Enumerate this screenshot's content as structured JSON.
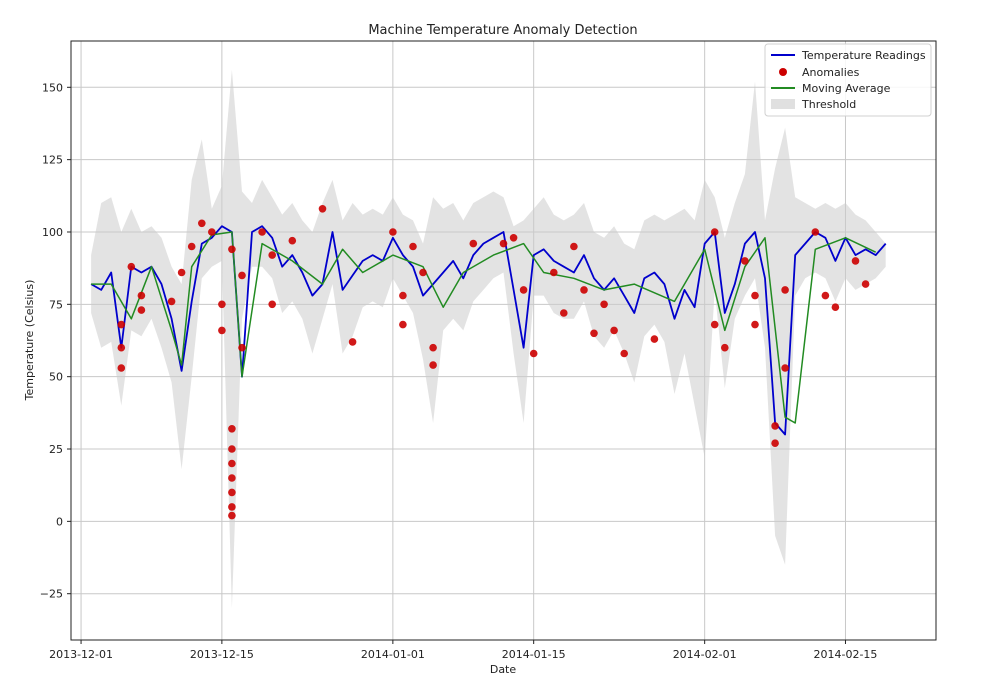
{
  "chart_data": {
    "type": "line",
    "title": "Machine Temperature Anomaly Detection",
    "xlabel": "Date",
    "ylabel": "Temperature (Celsius)",
    "x_range": [
      "2013-11-30",
      "2014-02-24"
    ],
    "ylim": [
      -41,
      166
    ],
    "x_ticks": [
      "2013-12-01",
      "2013-12-15",
      "2014-01-01",
      "2014-01-15",
      "2014-02-01",
      "2014-02-15"
    ],
    "y_ticks": [
      -25,
      0,
      25,
      50,
      75,
      100,
      125,
      150
    ],
    "grid": true,
    "legend_position": "top-right",
    "legend": [
      "Temperature Readings",
      "Anomalies",
      "Moving Average",
      "Threshold"
    ],
    "colors": {
      "temperature": "#0000cc",
      "anomalies": "#cc0000",
      "moving_average": "#228b22",
      "threshold": "#cccccc"
    },
    "series": [
      {
        "name": "Temperature Readings",
        "x": [
          "2013-12-02",
          "2013-12-03",
          "2013-12-04",
          "2013-12-05",
          "2013-12-06",
          "2013-12-07",
          "2013-12-08",
          "2013-12-09",
          "2013-12-10",
          "2013-12-11",
          "2013-12-12",
          "2013-12-13",
          "2013-12-14",
          "2013-12-15",
          "2013-12-16",
          "2013-12-17",
          "2013-12-18",
          "2013-12-19",
          "2013-12-20",
          "2013-12-21",
          "2013-12-22",
          "2013-12-23",
          "2013-12-24",
          "2013-12-25",
          "2013-12-26",
          "2013-12-27",
          "2013-12-28",
          "2013-12-29",
          "2013-12-30",
          "2013-12-31",
          "2014-01-01",
          "2014-01-02",
          "2014-01-03",
          "2014-01-04",
          "2014-01-05",
          "2014-01-06",
          "2014-01-07",
          "2014-01-08",
          "2014-01-09",
          "2014-01-10",
          "2014-01-11",
          "2014-01-12",
          "2014-01-13",
          "2014-01-14",
          "2014-01-15",
          "2014-01-16",
          "2014-01-17",
          "2014-01-18",
          "2014-01-19",
          "2014-01-20",
          "2014-01-21",
          "2014-01-22",
          "2014-01-23",
          "2014-01-24",
          "2014-01-25",
          "2014-01-26",
          "2014-01-27",
          "2014-01-28",
          "2014-01-29",
          "2014-01-30",
          "2014-01-31",
          "2014-02-01",
          "2014-02-02",
          "2014-02-03",
          "2014-02-04",
          "2014-02-05",
          "2014-02-06",
          "2014-02-07",
          "2014-02-08",
          "2014-02-09",
          "2014-02-10",
          "2014-02-11",
          "2014-02-12",
          "2014-02-13",
          "2014-02-14",
          "2014-02-15",
          "2014-02-16",
          "2014-02-17",
          "2014-02-18",
          "2014-02-19"
        ],
        "values": [
          82,
          80,
          86,
          60,
          88,
          86,
          88,
          82,
          70,
          52,
          76,
          96,
          98,
          102,
          100,
          50,
          100,
          102,
          98,
          88,
          92,
          86,
          78,
          82,
          100,
          80,
          85,
          90,
          92,
          90,
          98,
          92,
          88,
          78,
          82,
          86,
          90,
          84,
          92,
          96,
          98,
          100,
          80,
          60,
          92,
          94,
          90,
          88,
          86,
          92,
          84,
          80,
          84,
          78,
          72,
          84,
          86,
          82,
          70,
          80,
          74,
          96,
          100,
          72,
          82,
          96,
          100,
          84,
          34,
          30,
          92,
          96,
          100,
          98,
          90,
          98,
          92,
          94,
          92,
          96
        ]
      },
      {
        "name": "Moving Average",
        "x": [
          "2013-12-02",
          "2013-12-04",
          "2013-12-06",
          "2013-12-08",
          "2013-12-10",
          "2013-12-11",
          "2013-12-12",
          "2013-12-14",
          "2013-12-16",
          "2013-12-17",
          "2013-12-19",
          "2013-12-22",
          "2013-12-25",
          "2013-12-27",
          "2013-12-29",
          "2014-01-01",
          "2014-01-04",
          "2014-01-06",
          "2014-01-08",
          "2014-01-11",
          "2014-01-14",
          "2014-01-16",
          "2014-01-19",
          "2014-01-22",
          "2014-01-25",
          "2014-01-29",
          "2014-02-01",
          "2014-02-03",
          "2014-02-05",
          "2014-02-07",
          "2014-02-09",
          "2014-02-10",
          "2014-02-12",
          "2014-02-15",
          "2014-02-18"
        ],
        "values": [
          82,
          82,
          70,
          88,
          66,
          54,
          88,
          99,
          100,
          50,
          96,
          90,
          82,
          94,
          86,
          92,
          88,
          74,
          86,
          92,
          96,
          86,
          84,
          80,
          82,
          76,
          94,
          66,
          88,
          98,
          36,
          34,
          94,
          98,
          93
        ]
      },
      {
        "name": "Anomalies",
        "type": "scatter",
        "x": [
          "2013-12-05",
          "2013-12-05",
          "2013-12-05",
          "2013-12-06",
          "2013-12-07",
          "2013-12-07",
          "2013-12-10",
          "2013-12-11",
          "2013-12-12",
          "2013-12-13",
          "2013-12-14",
          "2013-12-15",
          "2013-12-15",
          "2013-12-16",
          "2013-12-16",
          "2013-12-16",
          "2013-12-16",
          "2013-12-16",
          "2013-12-16",
          "2013-12-16",
          "2013-12-16",
          "2013-12-17",
          "2013-12-17",
          "2013-12-19",
          "2013-12-20",
          "2013-12-20",
          "2013-12-22",
          "2013-12-25",
          "2013-12-28",
          "2014-01-01",
          "2014-01-02",
          "2014-01-02",
          "2014-01-03",
          "2014-01-04",
          "2014-01-05",
          "2014-01-05",
          "2014-01-09",
          "2014-01-12",
          "2014-01-13",
          "2014-01-14",
          "2014-01-15",
          "2014-01-17",
          "2014-01-18",
          "2014-01-19",
          "2014-01-20",
          "2014-01-21",
          "2014-01-22",
          "2014-01-23",
          "2014-01-24",
          "2014-01-27",
          "2014-02-02",
          "2014-02-02",
          "2014-02-03",
          "2014-02-05",
          "2014-02-06",
          "2014-02-06",
          "2014-02-08",
          "2014-02-08",
          "2014-02-09",
          "2014-02-09",
          "2014-02-12",
          "2014-02-13",
          "2014-02-14",
          "2014-02-16",
          "2014-02-17"
        ],
        "values": [
          68,
          60,
          53,
          88,
          78,
          73,
          76,
          86,
          95,
          103,
          100,
          75,
          66,
          32,
          25,
          20,
          15,
          10,
          5,
          2,
          94,
          85,
          60,
          100,
          92,
          75,
          97,
          108,
          62,
          100,
          78,
          68,
          95,
          86,
          60,
          54,
          96,
          96,
          98,
          80,
          58,
          86,
          72,
          95,
          80,
          65,
          75,
          66,
          58,
          63,
          100,
          68,
          60,
          90,
          78,
          68,
          33,
          27,
          80,
          53,
          100,
          78,
          74,
          90,
          82
        ]
      },
      {
        "name": "Threshold",
        "type": "band",
        "x": [
          "2013-12-02",
          "2013-12-03",
          "2013-12-04",
          "2013-12-05",
          "2013-12-06",
          "2013-12-07",
          "2013-12-08",
          "2013-12-09",
          "2013-12-10",
          "2013-12-11",
          "2013-12-12",
          "2013-12-13",
          "2013-12-14",
          "2013-12-15",
          "2013-12-16",
          "2013-12-17",
          "2013-12-18",
          "2013-12-19",
          "2013-12-20",
          "2013-12-21",
          "2013-12-22",
          "2013-12-23",
          "2013-12-24",
          "2013-12-25",
          "2013-12-26",
          "2013-12-27",
          "2013-12-28",
          "2013-12-29",
          "2013-12-30",
          "2013-12-31",
          "2014-01-01",
          "2014-01-02",
          "2014-01-03",
          "2014-01-04",
          "2014-01-05",
          "2014-01-06",
          "2014-01-07",
          "2014-01-08",
          "2014-01-09",
          "2014-01-10",
          "2014-01-11",
          "2014-01-12",
          "2014-01-13",
          "2014-01-14",
          "2014-01-15",
          "2014-01-16",
          "2014-01-17",
          "2014-01-18",
          "2014-01-19",
          "2014-01-20",
          "2014-01-21",
          "2014-01-22",
          "2014-01-23",
          "2014-01-24",
          "2014-01-25",
          "2014-01-26",
          "2014-01-27",
          "2014-01-28",
          "2014-01-29",
          "2014-01-30",
          "2014-01-31",
          "2014-02-01",
          "2014-02-02",
          "2014-02-03",
          "2014-02-04",
          "2014-02-05",
          "2014-02-06",
          "2014-02-07",
          "2014-02-08",
          "2014-02-09",
          "2014-02-10",
          "2014-02-11",
          "2014-02-12",
          "2014-02-13",
          "2014-02-14",
          "2014-02-15",
          "2014-02-16",
          "2014-02-17",
          "2014-02-18",
          "2014-02-19"
        ],
        "upper": [
          92,
          110,
          112,
          100,
          108,
          100,
          102,
          98,
          88,
          82,
          118,
          132,
          108,
          116,
          156,
          114,
          110,
          118,
          112,
          106,
          110,
          104,
          100,
          110,
          118,
          104,
          110,
          106,
          108,
          106,
          112,
          106,
          104,
          96,
          112,
          108,
          110,
          104,
          110,
          112,
          114,
          112,
          102,
          104,
          108,
          112,
          106,
          104,
          106,
          110,
          100,
          98,
          102,
          96,
          94,
          104,
          106,
          104,
          106,
          108,
          104,
          118,
          112,
          98,
          110,
          120,
          152,
          104,
          122,
          136,
          112,
          110,
          108,
          110,
          108,
          110,
          106,
          104,
          100,
          96
        ],
        "lower": [
          72,
          60,
          62,
          40,
          66,
          64,
          70,
          60,
          48,
          18,
          50,
          84,
          88,
          90,
          -30,
          70,
          88,
          88,
          84,
          72,
          76,
          70,
          58,
          70,
          82,
          58,
          64,
          74,
          76,
          74,
          84,
          78,
          72,
          56,
          34,
          66,
          70,
          66,
          76,
          80,
          84,
          86,
          58,
          34,
          78,
          78,
          72,
          70,
          70,
          76,
          64,
          60,
          66,
          58,
          48,
          64,
          68,
          62,
          44,
          58,
          40,
          22,
          80,
          46,
          70,
          78,
          84,
          60,
          -5,
          -15,
          78,
          84,
          86,
          84,
          76,
          84,
          80,
          82,
          84,
          88
        ]
      }
    ]
  }
}
